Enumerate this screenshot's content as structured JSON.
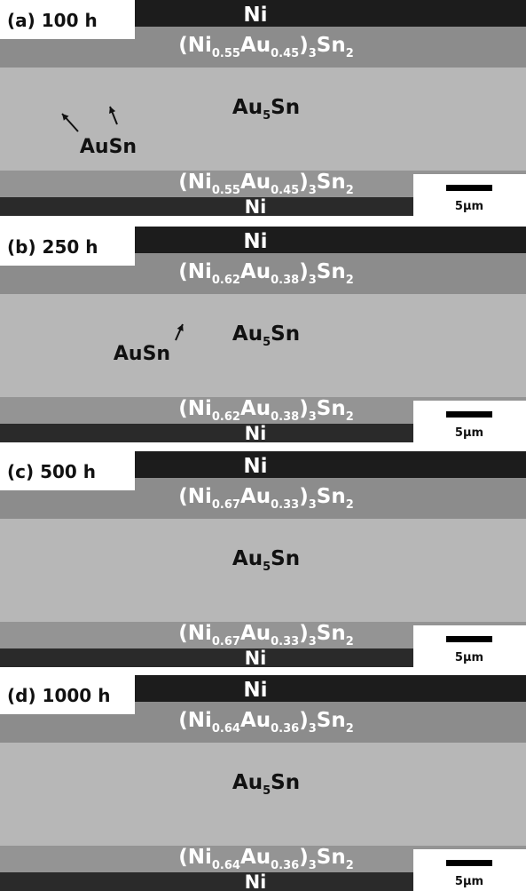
{
  "panels": [
    {
      "label": "(a) 100 h",
      "top_ni": "Ni",
      "bottom_ni": "Ni",
      "scale": "5µm",
      "top_imc": [
        {
          "t": "(Ni"
        },
        {
          "s": "0.55"
        },
        {
          "t": "Au"
        },
        {
          "s": "0.45"
        },
        {
          "t": ")"
        },
        {
          "s": "3"
        },
        {
          "t": "Sn"
        },
        {
          "s": "2"
        }
      ],
      "bottom_imc": [
        {
          "t": "(Ni"
        },
        {
          "s": "0.55"
        },
        {
          "t": "Au"
        },
        {
          "s": "0.45"
        },
        {
          "t": ")"
        },
        {
          "s": "3"
        },
        {
          "t": "Sn"
        },
        {
          "s": "2"
        }
      ],
      "matrix": [
        {
          "t": "Au"
        },
        {
          "s": "5"
        },
        {
          "t": "Sn"
        }
      ],
      "annotation": "AuSn"
    },
    {
      "label": "(b) 250 h",
      "top_ni": "Ni",
      "bottom_ni": "Ni",
      "scale": "5µm",
      "top_imc": [
        {
          "t": "(Ni"
        },
        {
          "s": "0.62"
        },
        {
          "t": "Au"
        },
        {
          "s": "0.38"
        },
        {
          "t": ")"
        },
        {
          "s": "3"
        },
        {
          "t": "Sn"
        },
        {
          "s": "2"
        }
      ],
      "bottom_imc": [
        {
          "t": "(Ni"
        },
        {
          "s": "0.62"
        },
        {
          "t": "Au"
        },
        {
          "s": "0.38"
        },
        {
          "t": ")"
        },
        {
          "s": "3"
        },
        {
          "t": "Sn"
        },
        {
          "s": "2"
        }
      ],
      "matrix": [
        {
          "t": "Au"
        },
        {
          "s": "5"
        },
        {
          "t": "Sn"
        }
      ],
      "annotation": "AuSn"
    },
    {
      "label": "(c) 500 h",
      "top_ni": "Ni",
      "bottom_ni": "Ni",
      "scale": "5µm",
      "top_imc": [
        {
          "t": "(Ni"
        },
        {
          "s": "0.67"
        },
        {
          "t": "Au"
        },
        {
          "s": "0.33"
        },
        {
          "t": ")"
        },
        {
          "s": "3"
        },
        {
          "t": "Sn"
        },
        {
          "s": "2"
        }
      ],
      "bottom_imc": [
        {
          "t": "(Ni"
        },
        {
          "s": "0.67"
        },
        {
          "t": "Au"
        },
        {
          "s": "0.33"
        },
        {
          "t": ")"
        },
        {
          "s": "3"
        },
        {
          "t": "Sn"
        },
        {
          "s": "2"
        }
      ],
      "matrix": [
        {
          "t": "Au"
        },
        {
          "s": "5"
        },
        {
          "t": "Sn"
        }
      ]
    },
    {
      "label": "(d) 1000 h",
      "top_ni": "Ni",
      "bottom_ni": "Ni",
      "scale": "5µm",
      "top_imc": [
        {
          "t": "(Ni"
        },
        {
          "s": "0.64"
        },
        {
          "t": "Au"
        },
        {
          "s": "0.36"
        },
        {
          "t": ")"
        },
        {
          "s": "3"
        },
        {
          "t": "Sn"
        },
        {
          "s": "2"
        }
      ],
      "bottom_imc": [
        {
          "t": "(Ni"
        },
        {
          "s": "0.64"
        },
        {
          "t": "Au"
        },
        {
          "s": "0.36"
        },
        {
          "t": ")"
        },
        {
          "s": "3"
        },
        {
          "t": "Sn"
        },
        {
          "s": "2"
        }
      ],
      "matrix": [
        {
          "t": "Au"
        },
        {
          "s": "5"
        },
        {
          "t": "Sn"
        }
      ]
    }
  ]
}
